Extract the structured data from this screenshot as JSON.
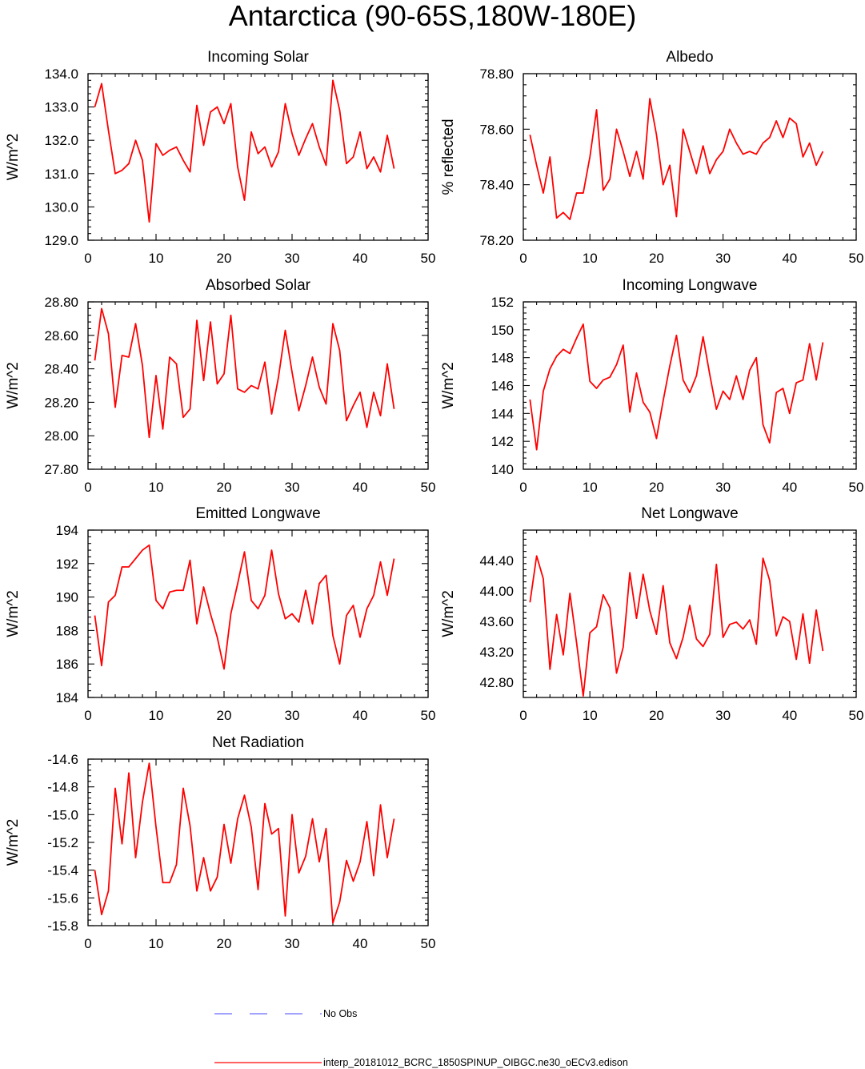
{
  "title": "Antarctica (90-65S,180W-180E)",
  "colors": {
    "model_line": "#ff0000",
    "obs_line": "#6a6aff",
    "axis": "#000000"
  },
  "legend": {
    "obs_label": "No Obs",
    "model_label": "interp_20181012_BCRC_1850SPINUP_OIBGC.ne30_oECv3.edison"
  },
  "chart_data": [
    {
      "type": "line",
      "title": "Incoming Solar",
      "ylabel": "W/m^2",
      "xlim": [
        0,
        50
      ],
      "ylim": [
        129.0,
        134.0
      ],
      "x_ticks": [
        "0",
        "10",
        "20",
        "30",
        "40",
        "50"
      ],
      "y_ticks": [
        "129.0",
        "130.0",
        "131.0",
        "132.0",
        "133.0",
        "134.0"
      ],
      "series": [
        {
          "values": [
            133.0,
            133.7,
            132.3,
            131.0,
            131.1,
            131.3,
            132.0,
            131.4,
            129.55,
            131.9,
            131.55,
            131.7,
            131.8,
            131.4,
            131.05,
            133.05,
            131.85,
            132.85,
            133.0,
            132.5,
            133.1,
            131.2,
            130.2,
            132.25,
            131.6,
            131.8,
            131.2,
            131.65,
            133.1,
            132.2,
            131.55,
            132.05,
            132.5,
            131.8,
            131.25,
            133.8,
            132.9,
            131.3,
            131.5,
            132.25,
            131.15,
            131.5,
            131.05,
            132.15,
            131.15
          ]
        }
      ]
    },
    {
      "type": "line",
      "title": "Albedo",
      "ylabel": "% reflected",
      "xlim": [
        0,
        50
      ],
      "ylim": [
        78.2,
        78.8
      ],
      "x_ticks": [
        "0",
        "10",
        "20",
        "30",
        "40",
        "50"
      ],
      "y_ticks": [
        "78.20",
        "78.40",
        "78.60",
        "78.80"
      ],
      "series": [
        {
          "values": [
            78.58,
            78.47,
            78.37,
            78.5,
            78.28,
            78.3,
            78.275,
            78.37,
            78.37,
            78.5,
            78.67,
            78.38,
            78.42,
            78.6,
            78.52,
            78.43,
            78.52,
            78.42,
            78.71,
            78.58,
            78.4,
            78.47,
            78.285,
            78.6,
            78.52,
            78.44,
            78.54,
            78.44,
            78.49,
            78.52,
            78.6,
            78.55,
            78.51,
            78.52,
            78.51,
            78.55,
            78.57,
            78.63,
            78.57,
            78.64,
            78.62,
            78.5,
            78.55,
            78.47,
            78.52
          ]
        }
      ]
    },
    {
      "type": "line",
      "title": "Absorbed Solar",
      "ylabel": "W/m^2",
      "xlim": [
        0,
        50
      ],
      "ylim": [
        27.8,
        28.8
      ],
      "x_ticks": [
        "0",
        "10",
        "20",
        "30",
        "40",
        "50"
      ],
      "y_ticks": [
        "27.80",
        "28.00",
        "28.20",
        "28.40",
        "28.60",
        "28.80"
      ],
      "series": [
        {
          "values": [
            28.45,
            28.76,
            28.61,
            28.17,
            28.48,
            28.47,
            28.67,
            28.42,
            27.99,
            28.36,
            28.04,
            28.47,
            28.43,
            28.11,
            28.16,
            28.69,
            28.33,
            28.68,
            28.31,
            28.37,
            28.72,
            28.28,
            28.26,
            28.3,
            28.28,
            28.44,
            28.13,
            28.35,
            28.63,
            28.38,
            28.15,
            28.3,
            28.47,
            28.29,
            28.19,
            28.67,
            28.51,
            28.09,
            28.18,
            28.26,
            28.05,
            28.26,
            28.12,
            28.43,
            28.16
          ]
        }
      ]
    },
    {
      "type": "line",
      "title": "Incoming Longwave",
      "ylabel": "W/m^2",
      "xlim": [
        0,
        50
      ],
      "ylim": [
        140,
        152
      ],
      "x_ticks": [
        "0",
        "10",
        "20",
        "30",
        "40",
        "50"
      ],
      "y_ticks": [
        "140",
        "142",
        "144",
        "146",
        "148",
        "150",
        "152"
      ],
      "series": [
        {
          "values": [
            145.0,
            141.4,
            145.6,
            147.2,
            148.1,
            148.6,
            148.3,
            149.4,
            150.4,
            146.3,
            145.8,
            146.4,
            146.6,
            147.5,
            148.9,
            144.1,
            146.9,
            144.8,
            144.1,
            142.2,
            144.9,
            147.4,
            149.6,
            146.4,
            145.5,
            146.7,
            149.5,
            146.8,
            144.3,
            145.6,
            145.0,
            146.7,
            145.0,
            147.1,
            148.0,
            143.2,
            141.9,
            145.5,
            145.8,
            144.0,
            146.2,
            146.4,
            149.0,
            146.4,
            149.1
          ]
        }
      ]
    },
    {
      "type": "line",
      "title": "Emitted Longwave",
      "ylabel": "W/m^2",
      "xlim": [
        0,
        50
      ],
      "ylim": [
        184,
        194
      ],
      "x_ticks": [
        "0",
        "10",
        "20",
        "30",
        "40",
        "50"
      ],
      "y_ticks": [
        "184",
        "186",
        "188",
        "190",
        "192",
        "194"
      ],
      "series": [
        {
          "values": [
            188.9,
            185.9,
            189.7,
            190.1,
            191.8,
            191.8,
            192.3,
            192.8,
            193.1,
            189.8,
            189.3,
            190.3,
            190.4,
            190.4,
            192.2,
            188.4,
            190.6,
            189.0,
            187.6,
            185.7,
            189.0,
            190.8,
            192.7,
            189.8,
            189.3,
            190.1,
            192.8,
            190.2,
            188.7,
            189.0,
            188.5,
            190.4,
            188.4,
            190.8,
            191.3,
            187.7,
            186.0,
            188.9,
            189.5,
            187.6,
            189.3,
            190.1,
            192.1,
            190.1,
            192.3
          ]
        }
      ]
    },
    {
      "type": "line",
      "title": "Net Longwave",
      "ylabel": "W/m^2",
      "xlim": [
        0,
        50
      ],
      "ylim": [
        42.6,
        44.8
      ],
      "x_ticks": [
        "0",
        "10",
        "20",
        "30",
        "40",
        "50"
      ],
      "y_ticks": [
        "42.80",
        "43.20",
        "43.60",
        "44.00",
        "44.40"
      ],
      "series": [
        {
          "values": [
            43.85,
            44.46,
            44.16,
            42.97,
            43.69,
            43.16,
            43.97,
            43.32,
            42.62,
            43.45,
            43.53,
            43.95,
            43.78,
            42.92,
            43.26,
            44.24,
            43.64,
            44.22,
            43.74,
            43.43,
            44.07,
            43.32,
            43.11,
            43.39,
            43.81,
            43.37,
            43.27,
            43.43,
            44.35,
            43.39,
            43.56,
            43.59,
            43.5,
            43.62,
            43.3,
            44.43,
            44.14,
            43.41,
            43.66,
            43.6,
            43.1,
            43.7,
            43.05,
            43.75,
            43.21
          ]
        }
      ]
    },
    {
      "type": "line",
      "title": "Net Radiation",
      "ylabel": "W/m^2",
      "xlim": [
        0,
        50
      ],
      "ylim": [
        -15.8,
        -14.6
      ],
      "x_ticks": [
        "0",
        "10",
        "20",
        "30",
        "40",
        "50"
      ],
      "y_ticks": [
        "-15.8",
        "-15.6",
        "-15.4",
        "-15.2",
        "-15.0",
        "-14.8",
        "-14.6"
      ],
      "series": [
        {
          "values": [
            -15.4,
            -15.72,
            -15.55,
            -14.81,
            -15.21,
            -14.7,
            -15.31,
            -14.91,
            -14.63,
            -15.09,
            -15.49,
            -15.49,
            -15.36,
            -14.81,
            -15.08,
            -15.55,
            -15.31,
            -15.55,
            -15.45,
            -15.07,
            -15.35,
            -15.03,
            -14.86,
            -15.09,
            -15.54,
            -14.92,
            -15.14,
            -15.1,
            -15.73,
            -15.0,
            -15.42,
            -15.3,
            -15.03,
            -15.34,
            -15.1,
            -15.78,
            -15.63,
            -15.33,
            -15.48,
            -15.34,
            -15.05,
            -15.44,
            -14.93,
            -15.31,
            -15.03
          ]
        }
      ]
    }
  ]
}
